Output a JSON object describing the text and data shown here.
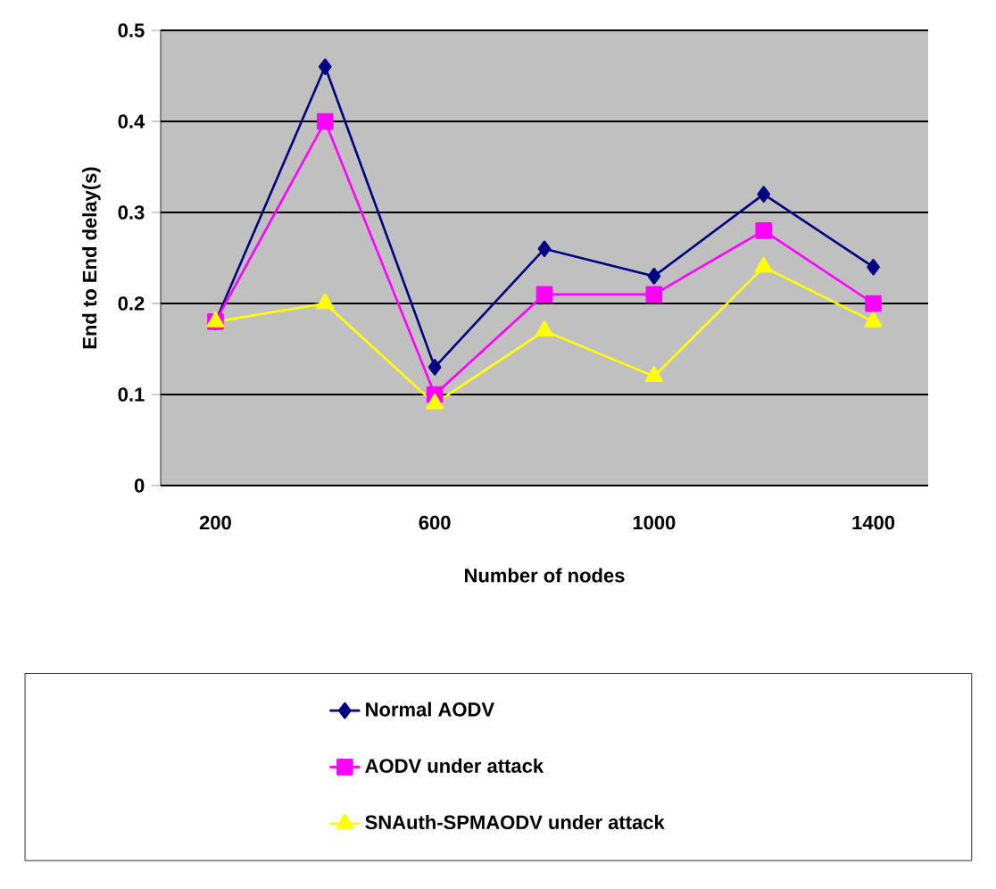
{
  "chart_data": {
    "type": "line",
    "xlabel": "Number of nodes",
    "ylabel": "End to End delay(s)",
    "categories": [
      "200",
      null,
      "600",
      null,
      "1000",
      null,
      "1400"
    ],
    "ylim": [
      0,
      0.5
    ],
    "yticks": [
      0,
      0.1,
      0.2,
      0.3,
      0.4,
      0.5
    ],
    "grid": "y",
    "legend": "bottom",
    "line_style": "solid",
    "series": [
      {
        "name": "Normal AODV",
        "color": "#000080",
        "marker": "diamond",
        "values": [
          0.18,
          0.46,
          0.13,
          0.26,
          0.23,
          0.32,
          0.24
        ]
      },
      {
        "name": "AODV under attack",
        "color": "#ff00ff",
        "marker": "square",
        "values": [
          0.18,
          0.4,
          0.1,
          0.21,
          0.21,
          0.28,
          0.2
        ]
      },
      {
        "name": "SNAuth-SPMAODV under attack",
        "color": "#ffff00",
        "marker": "triangle",
        "values": [
          0.18,
          0.2,
          0.09,
          0.17,
          0.12,
          0.24,
          0.18
        ]
      }
    ]
  }
}
